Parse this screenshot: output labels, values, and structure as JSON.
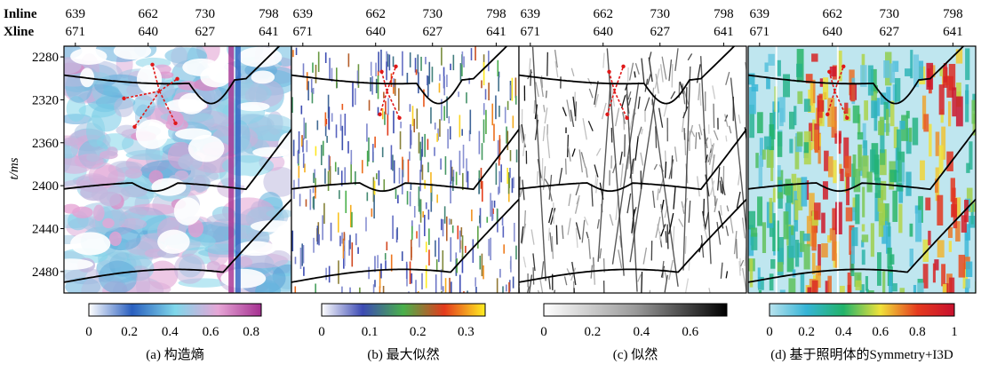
{
  "figure": {
    "row_labels": [
      "Inline",
      "Xline"
    ],
    "y_axis_label": "t/ms",
    "y_ticks": [
      2280,
      2320,
      2360,
      2400,
      2440,
      2480
    ],
    "top_ticks": [
      {
        "inline": "639",
        "xline": "671"
      },
      {
        "inline": "662",
        "xline": "640"
      },
      {
        "inline": "730",
        "xline": "627"
      },
      {
        "inline": "798",
        "xline": "641"
      }
    ]
  },
  "chart_data": [
    {
      "type": "heatmap",
      "caption": "(a) 构造熵",
      "colorbar": {
        "min": 0,
        "max": 0.85,
        "ticks": [
          "0",
          "0.2",
          "0.4",
          "0.6",
          "0.8"
        ],
        "colors": [
          "#ffffff",
          "#2a5fbf",
          "#7fd7ea",
          "#e6a6d6",
          "#a52f90"
        ]
      },
      "background": "#ffffff"
    },
    {
      "type": "heatmap",
      "caption": "(b) 最大似然",
      "colorbar": {
        "min": 0,
        "max": 0.34,
        "ticks": [
          "0",
          "0.1",
          "0.2",
          "0.3"
        ],
        "colors": [
          "#ffffff",
          "#3c4ab4",
          "#49b04a",
          "#e43a1c",
          "#ffee22"
        ]
      },
      "background": "#ffffff"
    },
    {
      "type": "heatmap",
      "caption": "(c) 似然",
      "colorbar": {
        "min": 0,
        "max": 0.75,
        "ticks": [
          "0",
          "0.2",
          "0.4",
          "0.6"
        ],
        "colors": [
          "#ffffff",
          "#9a9a9a",
          "#000000"
        ]
      },
      "background": "#ffffff"
    },
    {
      "type": "heatmap",
      "caption": "(d) 基于照明体的Symmetry+I3D",
      "colorbar": {
        "min": 0,
        "max": 1,
        "ticks": [
          "0",
          "0.2",
          "0.4",
          "0.6",
          "0.8",
          "1"
        ],
        "colors": [
          "#b9e3ee",
          "#35b4d6",
          "#22b36a",
          "#f0e23a",
          "#e53a1e",
          "#c8102e"
        ]
      },
      "background": "#bfe6ef"
    }
  ]
}
